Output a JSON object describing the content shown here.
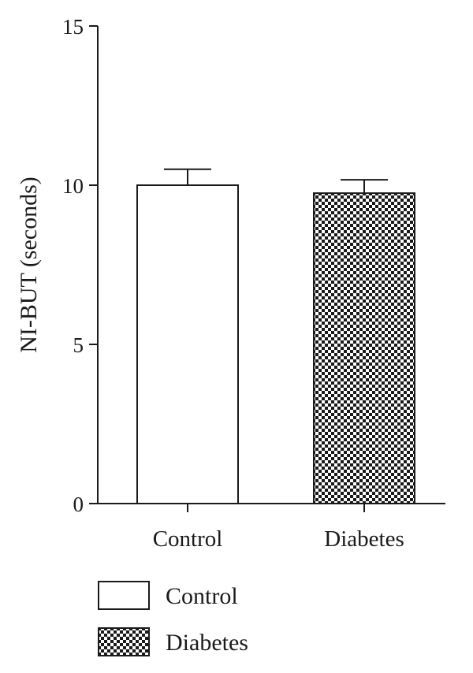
{
  "chart_data": {
    "type": "bar",
    "categories": [
      "Control",
      "Diabetes"
    ],
    "values": [
      10.0,
      9.75
    ],
    "errors": [
      0.5,
      0.42
    ],
    "ylabel": "NI-BUT (seconds)",
    "xlabel": "",
    "ylim": [
      0,
      15
    ],
    "yticks": [
      0,
      5,
      10,
      15
    ],
    "grid": false,
    "legend": {
      "placement": "bottom",
      "entries": [
        {
          "label": "Control",
          "fill": "white"
        },
        {
          "label": "Diabetes",
          "fill": "checkerboard"
        }
      ]
    },
    "colors": {
      "stroke": "#1a1a1a",
      "fill_control": "#ffffff",
      "pattern_dark": "#1a1a1a"
    }
  }
}
